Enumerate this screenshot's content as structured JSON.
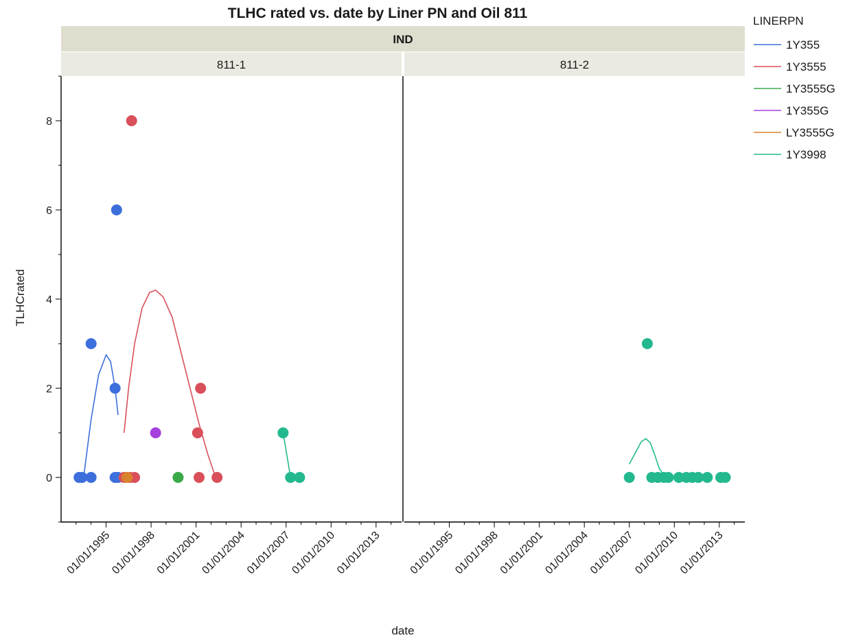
{
  "chart_data": {
    "type": "scatter",
    "title": "TLHC rated vs. date by Liner PN and Oil 811",
    "xlabel": "date",
    "ylabel": "TLHCrated",
    "group_strip": "IND",
    "panels": [
      "811-1",
      "811-2"
    ],
    "x_ticks": [
      "01/01/1995",
      "01/01/1998",
      "01/01/2001",
      "01/01/2004",
      "01/01/2007",
      "01/01/2010",
      "01/01/2013"
    ],
    "xlim": [
      1992.0,
      2014.7
    ],
    "ylim": [
      -1,
      9
    ],
    "y_ticks": [
      0,
      2,
      4,
      6,
      8
    ],
    "legend": {
      "title": "LINERPN",
      "position": "right"
    },
    "series": [
      {
        "name": "1Y355",
        "color": "#3d6fdc",
        "points": [
          {
            "panel": 0,
            "x": 1993.2,
            "y": 0
          },
          {
            "panel": 0,
            "x": 1993.4,
            "y": 0
          },
          {
            "panel": 0,
            "x": 1994.0,
            "y": 0
          },
          {
            "panel": 0,
            "x": 1994.0,
            "y": 3
          },
          {
            "panel": 0,
            "x": 1995.6,
            "y": 2
          },
          {
            "panel": 0,
            "x": 1995.6,
            "y": 0
          },
          {
            "panel": 0,
            "x": 1995.8,
            "y": 0
          },
          {
            "panel": 0,
            "x": 1995.7,
            "y": 6
          }
        ],
        "curve": [
          {
            "panel": 0,
            "x": 1993.5,
            "y": 0
          },
          {
            "panel": 0,
            "x": 1994.0,
            "y": 1.3
          },
          {
            "panel": 0,
            "x": 1994.5,
            "y": 2.3
          },
          {
            "panel": 0,
            "x": 1995.0,
            "y": 2.75
          },
          {
            "panel": 0,
            "x": 1995.3,
            "y": 2.6
          },
          {
            "panel": 0,
            "x": 1995.6,
            "y": 2.0
          },
          {
            "panel": 0,
            "x": 1995.8,
            "y": 1.4
          }
        ]
      },
      {
        "name": "1Y3555",
        "color": "#d94f5a",
        "points": [
          {
            "panel": 0,
            "x": 1996.7,
            "y": 8
          },
          {
            "panel": 0,
            "x": 1996.2,
            "y": 0
          },
          {
            "panel": 0,
            "x": 1996.6,
            "y": 0
          },
          {
            "panel": 0,
            "x": 1996.9,
            "y": 0
          },
          {
            "panel": 0,
            "x": 2001.1,
            "y": 1
          },
          {
            "panel": 0,
            "x": 2001.3,
            "y": 2
          },
          {
            "panel": 0,
            "x": 2001.2,
            "y": 0
          },
          {
            "panel": 0,
            "x": 2002.4,
            "y": 0
          }
        ],
        "curve": [
          {
            "panel": 0,
            "x": 1996.2,
            "y": 1.0
          },
          {
            "panel": 0,
            "x": 1996.5,
            "y": 2.0
          },
          {
            "panel": 0,
            "x": 1996.9,
            "y": 3.0
          },
          {
            "panel": 0,
            "x": 1997.4,
            "y": 3.8
          },
          {
            "panel": 0,
            "x": 1997.9,
            "y": 4.15
          },
          {
            "panel": 0,
            "x": 1998.3,
            "y": 4.2
          },
          {
            "panel": 0,
            "x": 1998.8,
            "y": 4.05
          },
          {
            "panel": 0,
            "x": 1999.4,
            "y": 3.6
          },
          {
            "panel": 0,
            "x": 2000.0,
            "y": 2.8
          },
          {
            "panel": 0,
            "x": 2000.6,
            "y": 2.0
          },
          {
            "panel": 0,
            "x": 2001.2,
            "y": 1.2
          },
          {
            "panel": 0,
            "x": 2001.8,
            "y": 0.5
          },
          {
            "panel": 0,
            "x": 2002.3,
            "y": 0.0
          }
        ]
      },
      {
        "name": "1Y3555G",
        "color": "#3aaa48",
        "points": [
          {
            "panel": 0,
            "x": 1999.8,
            "y": 0
          }
        ],
        "curve": []
      },
      {
        "name": "1Y355G",
        "color": "#a63fdc",
        "points": [
          {
            "panel": 0,
            "x": 1998.3,
            "y": 1
          }
        ],
        "curve": []
      },
      {
        "name": "LY3555G",
        "color": "#d9832c",
        "points": [
          {
            "panel": 0,
            "x": 1996.4,
            "y": 0
          }
        ],
        "curve": []
      },
      {
        "name": "1Y3998",
        "color": "#23b88e",
        "points": [
          {
            "panel": 0,
            "x": 2006.8,
            "y": 1
          },
          {
            "panel": 0,
            "x": 2007.3,
            "y": 0
          },
          {
            "panel": 0,
            "x": 2007.9,
            "y": 0
          },
          {
            "panel": 1,
            "x": 2007.0,
            "y": 0
          },
          {
            "panel": 1,
            "x": 2008.2,
            "y": 3
          },
          {
            "panel": 1,
            "x": 2008.5,
            "y": 0
          },
          {
            "panel": 1,
            "x": 2008.9,
            "y": 0
          },
          {
            "panel": 1,
            "x": 2009.3,
            "y": 0
          },
          {
            "panel": 1,
            "x": 2009.6,
            "y": 0
          },
          {
            "panel": 1,
            "x": 2010.3,
            "y": 0
          },
          {
            "panel": 1,
            "x": 2010.8,
            "y": 0
          },
          {
            "panel": 1,
            "x": 2011.2,
            "y": 0
          },
          {
            "panel": 1,
            "x": 2011.6,
            "y": 0
          },
          {
            "panel": 1,
            "x": 2012.2,
            "y": 0
          },
          {
            "panel": 1,
            "x": 2013.1,
            "y": 0
          },
          {
            "panel": 1,
            "x": 2013.4,
            "y": 0
          }
        ],
        "curve": [
          {
            "panel": 0,
            "x": 2006.8,
            "y": 1.0
          },
          {
            "panel": 0,
            "x": 2007.0,
            "y": 0.6
          },
          {
            "panel": 0,
            "x": 2007.3,
            "y": 0.0
          },
          {
            "panel": 1,
            "x": 2007.0,
            "y": 0.3
          },
          {
            "panel": 1,
            "x": 2007.4,
            "y": 0.55
          },
          {
            "panel": 1,
            "x": 2007.8,
            "y": 0.8
          },
          {
            "panel": 1,
            "x": 2008.1,
            "y": 0.87
          },
          {
            "panel": 1,
            "x": 2008.4,
            "y": 0.78
          },
          {
            "panel": 1,
            "x": 2008.7,
            "y": 0.5
          },
          {
            "panel": 1,
            "x": 2009.0,
            "y": 0.2
          },
          {
            "panel": 1,
            "x": 2009.4,
            "y": 0.0
          }
        ]
      }
    ]
  }
}
